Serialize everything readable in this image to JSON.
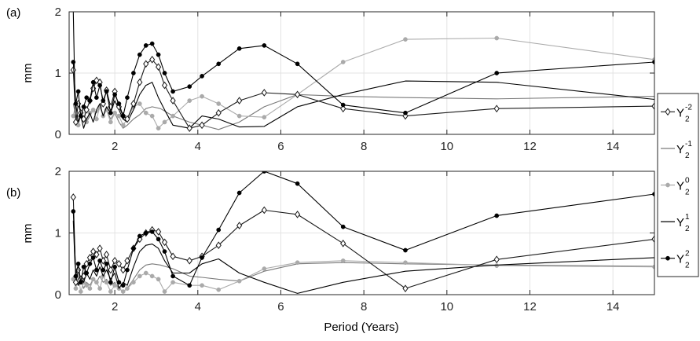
{
  "chart_data": [
    {
      "type": "line",
      "panel_label": "(a)",
      "ylabel": "mm",
      "xlabel": "",
      "xlim": [
        0.9,
        15
      ],
      "ylim": [
        0,
        2
      ],
      "x_ticks": [
        2,
        4,
        6,
        8,
        10,
        12,
        14
      ],
      "y_ticks": [
        0,
        1,
        2
      ],
      "grid": true,
      "series": [
        {
          "name": "Y2-2",
          "key": "m2",
          "marker": "diamond",
          "color": "#1a1a1a",
          "x": [
            1.0,
            1.06,
            1.12,
            1.18,
            1.25,
            1.32,
            1.4,
            1.48,
            1.56,
            1.64,
            1.72,
            1.8,
            1.9,
            2.0,
            2.1,
            2.2,
            2.3,
            2.45,
            2.6,
            2.75,
            2.9,
            3.05,
            3.2,
            3.4,
            3.8,
            4.1,
            4.5,
            5.0,
            5.6,
            6.4,
            7.5,
            9.0,
            11.2,
            15.0
          ],
          "y": [
            1.05,
            0.2,
            0.5,
            0.35,
            0.25,
            0.4,
            0.55,
            0.75,
            0.88,
            0.85,
            0.5,
            0.72,
            0.45,
            0.7,
            0.45,
            0.3,
            0.25,
            0.5,
            0.85,
            1.15,
            1.22,
            1.1,
            0.8,
            0.55,
            0.1,
            0.15,
            0.35,
            0.55,
            0.68,
            0.65,
            0.42,
            0.3,
            0.42,
            0.46
          ]
        },
        {
          "name": "Y2-1",
          "key": "m1",
          "marker": "none",
          "color": "#7a7a7a",
          "x": [
            1.0,
            1.06,
            1.12,
            1.18,
            1.25,
            1.32,
            1.4,
            1.48,
            1.56,
            1.64,
            1.72,
            1.8,
            1.9,
            2.0,
            2.1,
            2.2,
            2.3,
            2.45,
            2.6,
            2.75,
            2.9,
            3.1,
            3.4,
            3.8,
            4.1,
            4.5,
            5.0,
            5.6,
            6.4,
            7.5,
            9.0,
            11.2,
            15.0
          ],
          "y": [
            0.5,
            0.3,
            0.2,
            0.35,
            0.25,
            0.2,
            0.3,
            0.4,
            0.35,
            0.45,
            0.3,
            0.4,
            0.25,
            0.35,
            0.2,
            0.1,
            0.15,
            0.25,
            0.32,
            0.42,
            0.45,
            0.42,
            0.3,
            0.2,
            0.15,
            0.08,
            0.2,
            0.45,
            0.65,
            0.62,
            0.6,
            0.58,
            0.62
          ]
        },
        {
          "name": "Y20",
          "key": "z0",
          "marker": "dot",
          "color": "#aaaaaa",
          "x": [
            1.0,
            1.06,
            1.12,
            1.18,
            1.25,
            1.32,
            1.4,
            1.48,
            1.56,
            1.64,
            1.72,
            1.8,
            1.9,
            2.0,
            2.1,
            2.2,
            2.3,
            2.45,
            2.6,
            2.75,
            2.9,
            3.05,
            3.2,
            3.4,
            3.8,
            4.1,
            4.5,
            5.0,
            5.6,
            6.4,
            7.5,
            9.0,
            11.2,
            15.0
          ],
          "y": [
            0.3,
            0.5,
            0.15,
            0.3,
            0.45,
            0.2,
            0.35,
            0.4,
            0.25,
            0.45,
            0.3,
            0.4,
            0.2,
            0.35,
            0.3,
            0.15,
            0.25,
            0.45,
            0.5,
            0.35,
            0.3,
            0.1,
            0.2,
            0.3,
            0.55,
            0.62,
            0.5,
            0.3,
            0.28,
            0.65,
            1.18,
            1.55,
            1.57,
            1.22
          ]
        },
        {
          "name": "Y21",
          "key": "p1",
          "marker": "none",
          "color": "#000000",
          "x": [
            1.0,
            1.04,
            1.08,
            1.12,
            1.18,
            1.25,
            1.32,
            1.4,
            1.48,
            1.56,
            1.64,
            1.72,
            1.8,
            1.9,
            2.0,
            2.1,
            2.2,
            2.3,
            2.45,
            2.6,
            2.75,
            2.9,
            3.05,
            3.2,
            3.4,
            3.8,
            4.1,
            4.5,
            5.0,
            5.6,
            6.4,
            7.5,
            9.0,
            11.2,
            15.0
          ],
          "y": [
            2.0,
            0.6,
            0.4,
            0.2,
            0.3,
            0.1,
            0.25,
            0.35,
            0.2,
            0.4,
            0.5,
            0.3,
            0.45,
            0.35,
            0.55,
            0.4,
            0.25,
            0.2,
            0.4,
            0.65,
            0.8,
            0.85,
            0.6,
            0.4,
            0.15,
            0.1,
            0.3,
            0.25,
            0.12,
            0.13,
            0.45,
            0.65,
            0.87,
            0.85,
            0.57
          ]
        },
        {
          "name": "Y22",
          "key": "p2",
          "marker": "dot",
          "color": "#000000",
          "x": [
            1.0,
            1.06,
            1.12,
            1.18,
            1.25,
            1.32,
            1.4,
            1.48,
            1.56,
            1.64,
            1.72,
            1.8,
            1.9,
            2.0,
            2.1,
            2.2,
            2.3,
            2.45,
            2.6,
            2.75,
            2.9,
            3.05,
            3.2,
            3.4,
            3.8,
            4.1,
            4.5,
            5.0,
            5.6,
            6.4,
            7.5,
            9.0,
            11.2,
            15.0
          ],
          "y": [
            1.18,
            0.5,
            0.7,
            0.3,
            0.45,
            0.6,
            0.55,
            0.85,
            0.6,
            0.8,
            0.55,
            0.7,
            0.35,
            0.65,
            0.5,
            0.3,
            0.6,
            1.0,
            1.3,
            1.45,
            1.48,
            1.3,
            1.0,
            0.7,
            0.78,
            0.95,
            1.15,
            1.4,
            1.45,
            1.15,
            0.48,
            0.35,
            1.0,
            1.18
          ]
        }
      ]
    },
    {
      "type": "line",
      "panel_label": "(b)",
      "ylabel": "mm",
      "xlabel": "Period (Years)",
      "xlim": [
        0.9,
        15
      ],
      "ylim": [
        0,
        2
      ],
      "x_ticks": [
        2,
        4,
        6,
        8,
        10,
        12,
        14
      ],
      "y_ticks": [
        0,
        1,
        2
      ],
      "grid": true,
      "series": [
        {
          "name": "Y2-2",
          "key": "m2",
          "marker": "diamond",
          "color": "#1a1a1a",
          "x": [
            1.0,
            1.06,
            1.12,
            1.18,
            1.25,
            1.32,
            1.4,
            1.48,
            1.56,
            1.64,
            1.72,
            1.8,
            1.9,
            2.0,
            2.1,
            2.2,
            2.3,
            2.45,
            2.6,
            2.75,
            2.9,
            3.05,
            3.2,
            3.4,
            3.8,
            4.1,
            4.5,
            5.0,
            5.6,
            6.4,
            7.5,
            9.0,
            11.2,
            15.0
          ],
          "y": [
            1.58,
            0.2,
            0.4,
            0.25,
            0.3,
            0.5,
            0.6,
            0.7,
            0.65,
            0.75,
            0.55,
            0.65,
            0.4,
            0.55,
            0.5,
            0.4,
            0.55,
            0.75,
            0.9,
            1.0,
            1.05,
            1.02,
            0.85,
            0.62,
            0.55,
            0.62,
            0.8,
            1.12,
            1.37,
            1.3,
            0.83,
            0.1,
            0.57,
            0.9
          ]
        },
        {
          "name": "Y2-1",
          "key": "m1",
          "marker": "none",
          "color": "#7a7a7a",
          "x": [
            1.0,
            1.06,
            1.12,
            1.18,
            1.25,
            1.32,
            1.4,
            1.48,
            1.56,
            1.64,
            1.72,
            1.8,
            1.9,
            2.0,
            2.1,
            2.2,
            2.3,
            2.45,
            2.6,
            2.75,
            2.9,
            3.1,
            3.4,
            3.8,
            4.1,
            4.5,
            5.0,
            5.6,
            6.4,
            7.5,
            9.0,
            11.2,
            15.0
          ],
          "y": [
            0.3,
            0.2,
            0.15,
            0.25,
            0.1,
            0.2,
            0.15,
            0.25,
            0.2,
            0.3,
            0.2,
            0.25,
            0.15,
            0.2,
            0.1,
            0.05,
            0.1,
            0.25,
            0.4,
            0.48,
            0.5,
            0.48,
            0.42,
            0.3,
            0.28,
            0.25,
            0.22,
            0.38,
            0.5,
            0.52,
            0.5,
            0.48,
            0.46
          ]
        },
        {
          "name": "Y20",
          "key": "z0",
          "marker": "dot",
          "color": "#aaaaaa",
          "x": [
            1.0,
            1.06,
            1.12,
            1.18,
            1.25,
            1.32,
            1.4,
            1.48,
            1.56,
            1.64,
            1.72,
            1.8,
            1.9,
            2.0,
            2.1,
            2.2,
            2.3,
            2.45,
            2.6,
            2.75,
            2.9,
            3.05,
            3.2,
            3.4,
            3.8,
            4.1,
            4.5,
            5.0,
            5.6,
            6.4,
            7.5,
            9.0,
            11.2,
            15.0
          ],
          "y": [
            0.25,
            0.1,
            0.3,
            0.05,
            0.2,
            0.15,
            0.1,
            0.25,
            0.2,
            0.1,
            0.3,
            0.2,
            0.05,
            0.15,
            0.1,
            0.05,
            0.1,
            0.2,
            0.3,
            0.35,
            0.3,
            0.25,
            0.05,
            0.2,
            0.15,
            0.15,
            0.08,
            0.22,
            0.42,
            0.52,
            0.55,
            0.52,
            0.47,
            0.45
          ]
        },
        {
          "name": "Y21",
          "key": "p1",
          "marker": "none",
          "color": "#000000",
          "x": [
            1.0,
            1.04,
            1.08,
            1.12,
            1.18,
            1.25,
            1.32,
            1.4,
            1.48,
            1.56,
            1.64,
            1.72,
            1.8,
            1.9,
            2.0,
            2.1,
            2.2,
            2.3,
            2.45,
            2.6,
            2.75,
            2.9,
            3.05,
            3.2,
            3.4,
            3.8,
            4.1,
            4.5,
            5.0,
            5.6,
            6.4,
            7.5,
            9.0,
            11.2,
            15.0
          ],
          "y": [
            1.2,
            0.5,
            0.25,
            0.15,
            0.3,
            0.2,
            0.35,
            0.25,
            0.4,
            0.3,
            0.45,
            0.3,
            0.4,
            0.25,
            0.35,
            0.1,
            0.2,
            0.15,
            0.45,
            0.7,
            0.8,
            0.82,
            0.75,
            0.55,
            0.35,
            0.35,
            0.5,
            0.58,
            0.35,
            0.2,
            0.02,
            0.2,
            0.38,
            0.48,
            0.6
          ]
        },
        {
          "name": "Y22",
          "key": "p2",
          "marker": "dot",
          "color": "#000000",
          "x": [
            1.0,
            1.06,
            1.12,
            1.18,
            1.25,
            1.32,
            1.4,
            1.48,
            1.56,
            1.64,
            1.72,
            1.8,
            1.9,
            2.0,
            2.1,
            2.2,
            2.3,
            2.45,
            2.6,
            2.75,
            2.9,
            3.05,
            3.2,
            3.4,
            3.8,
            4.1,
            4.5,
            5.0,
            5.6,
            6.4,
            7.5,
            9.0,
            11.2,
            15.0
          ],
          "y": [
            1.35,
            0.3,
            0.5,
            0.2,
            0.45,
            0.35,
            0.5,
            0.6,
            0.4,
            0.55,
            0.4,
            0.5,
            0.2,
            0.45,
            0.2,
            0.15,
            0.4,
            0.75,
            0.95,
            1.0,
            1.02,
            0.9,
            0.7,
            0.3,
            0.15,
            0.6,
            1.05,
            1.65,
            2.0,
            1.8,
            1.1,
            0.72,
            1.28,
            1.63
          ]
        }
      ]
    }
  ],
  "legend": {
    "placement": "right",
    "entries": [
      {
        "key": "m2",
        "base": "Y",
        "sub": "2",
        "sup": "-2",
        "marker": "diamond",
        "color": "#1a1a1a"
      },
      {
        "key": "m1",
        "base": "Y",
        "sub": "2",
        "sup": "-1",
        "marker": "none",
        "color": "#7a7a7a"
      },
      {
        "key": "z0",
        "base": "Y",
        "sub": "2",
        "sup": "0",
        "marker": "dot",
        "color": "#aaaaaa"
      },
      {
        "key": "p1",
        "base": "Y",
        "sub": "2",
        "sup": "1",
        "marker": "none",
        "color": "#000000"
      },
      {
        "key": "p2",
        "base": "Y",
        "sub": "2",
        "sup": "2",
        "marker": "dot",
        "color": "#000000"
      }
    ]
  }
}
